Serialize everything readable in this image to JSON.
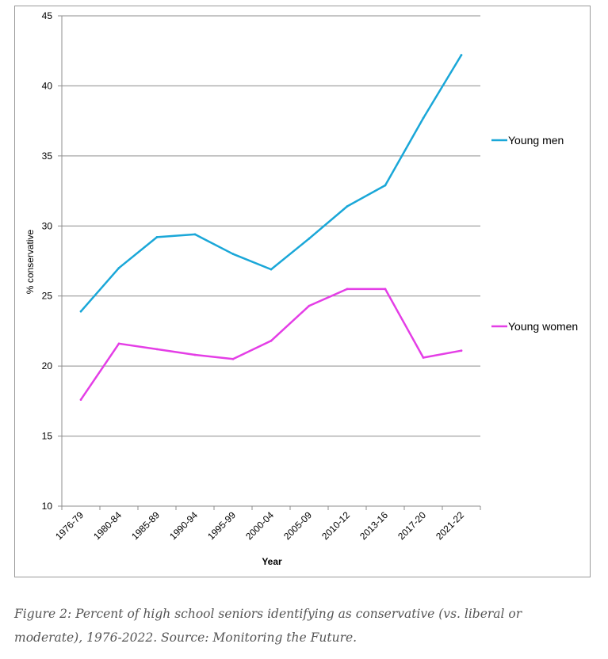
{
  "chart_data": {
    "type": "line",
    "xlabel": "Year",
    "ylabel": "% conservative",
    "ylim": [
      10,
      45
    ],
    "yticks": [
      10,
      15,
      20,
      25,
      30,
      35,
      40,
      45
    ],
    "grid": true,
    "legend_position": "right",
    "categories": [
      "1976-79",
      "1980-84",
      "1985-89",
      "1990-94",
      "1995-99",
      "2000-04",
      "2005-09",
      "2010-12",
      "2013-16",
      "2017-20",
      "2021-22"
    ],
    "series": [
      {
        "name": "Young men",
        "color": "#1aa7d8",
        "values": [
          23.9,
          27.0,
          29.2,
          29.4,
          28.0,
          26.9,
          29.1,
          31.4,
          32.9,
          37.7,
          42.2
        ]
      },
      {
        "name": "Young women",
        "color": "#e43ee6",
        "values": [
          17.6,
          21.6,
          21.2,
          20.8,
          20.5,
          21.8,
          24.3,
          25.5,
          25.5,
          20.6,
          21.1
        ]
      }
    ]
  },
  "caption": "Figure 2: Percent of high school seniors identifying as conservative (vs. liberal or moderate), 1976-2022. Source: Monitoring the Future."
}
